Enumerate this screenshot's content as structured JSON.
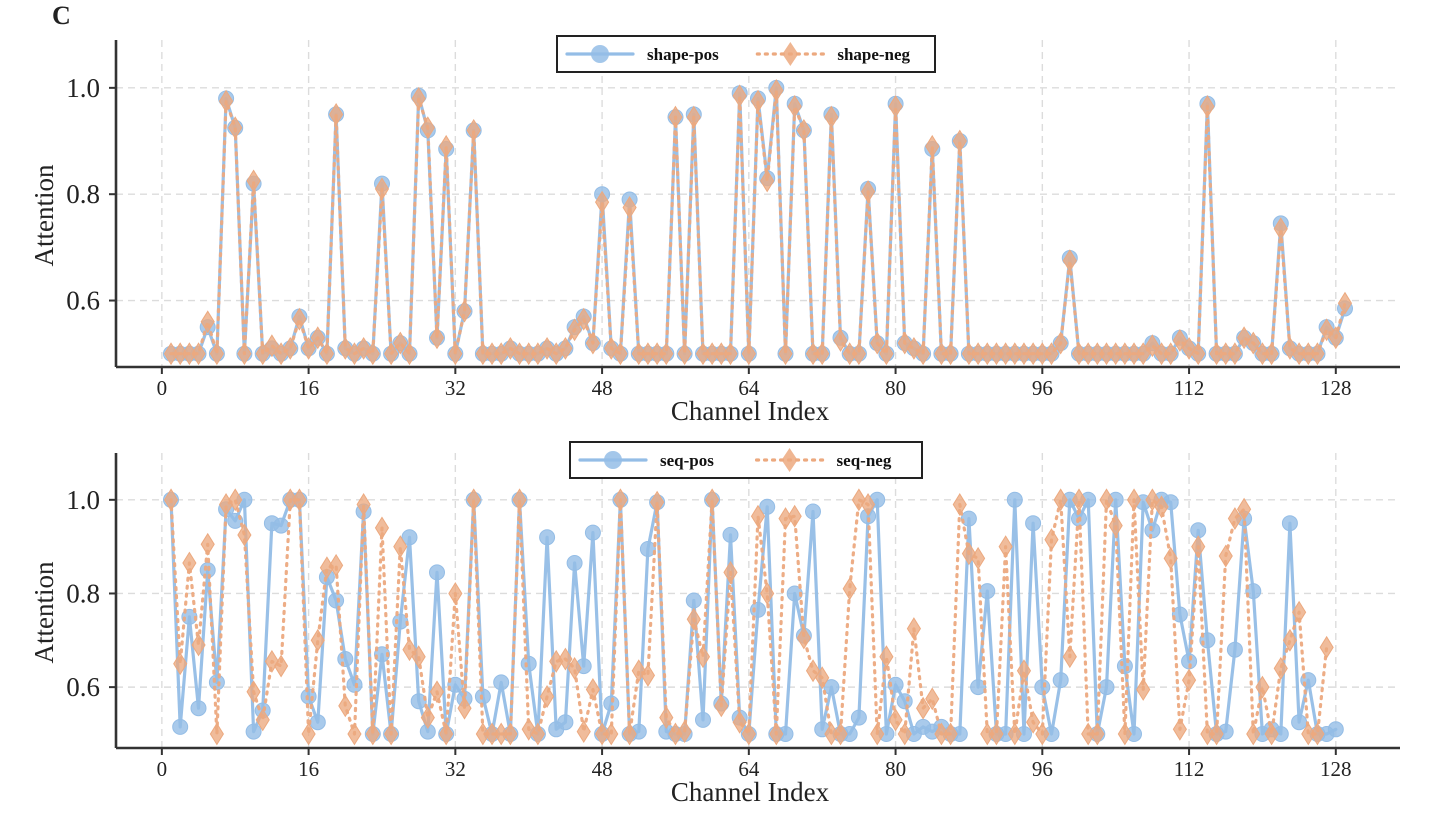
{
  "panel_label": "C",
  "colors": {
    "pos": "#94bde6",
    "neg": "#eca97f",
    "axis": "#333333",
    "grid": "#dcdcdc"
  },
  "chart_data": [
    {
      "type": "line",
      "xlabel": "Channel Index",
      "ylabel": "Attention",
      "xlim": [
        -5,
        135
      ],
      "ylim": [
        0.475,
        1.09
      ],
      "xticks": [
        0,
        16,
        32,
        48,
        64,
        80,
        96,
        112,
        128
      ],
      "yticks": [
        0.6,
        0.8,
        1.0
      ],
      "ytick_labels": [
        "0.6",
        "0.8",
        "1.0"
      ],
      "grid": true,
      "legend_position": "top-center",
      "x_start": 1,
      "series": [
        {
          "name": "shape-pos",
          "marker": "circle",
          "line_style": "solid",
          "values": [
            0.5,
            0.5,
            0.5,
            0.5,
            0.55,
            0.5,
            0.98,
            0.925,
            0.5,
            0.82,
            0.5,
            0.51,
            0.5,
            0.51,
            0.57,
            0.51,
            0.53,
            0.5,
            0.95,
            0.51,
            0.5,
            0.51,
            0.5,
            0.82,
            0.5,
            0.52,
            0.5,
            0.985,
            0.92,
            0.53,
            0.885,
            0.5,
            0.58,
            0.92,
            0.5,
            0.5,
            0.5,
            0.51,
            0.5,
            0.5,
            0.5,
            0.51,
            0.5,
            0.51,
            0.55,
            0.57,
            0.52,
            0.8,
            0.51,
            0.5,
            0.79,
            0.5,
            0.5,
            0.5,
            0.5,
            0.945,
            0.5,
            0.95,
            0.5,
            0.5,
            0.5,
            0.5,
            0.99,
            0.5,
            0.98,
            0.83,
            1.0,
            0.5,
            0.97,
            0.92,
            0.5,
            0.5,
            0.95,
            0.53,
            0.5,
            0.5,
            0.81,
            0.52,
            0.5,
            0.97,
            0.52,
            0.51,
            0.5,
            0.885,
            0.5,
            0.5,
            0.9,
            0.5,
            0.5,
            0.5,
            0.5,
            0.5,
            0.5,
            0.5,
            0.5,
            0.5,
            0.5,
            0.52,
            0.68,
            0.5,
            0.5,
            0.5,
            0.5,
            0.5,
            0.5,
            0.5,
            0.5,
            0.52,
            0.5,
            0.5,
            0.53,
            0.51,
            0.5,
            0.97,
            0.5,
            0.5,
            0.5,
            0.53,
            0.52,
            0.5,
            0.5,
            0.745,
            0.51,
            0.5,
            0.5,
            0.5,
            0.55,
            0.53,
            0.585
          ]
        },
        {
          "name": "shape-neg",
          "marker": "diamond",
          "line_style": "dotted",
          "values": [
            0.5,
            0.5,
            0.5,
            0.5,
            0.56,
            0.5,
            0.975,
            0.925,
            0.5,
            0.825,
            0.5,
            0.515,
            0.5,
            0.51,
            0.565,
            0.51,
            0.53,
            0.5,
            0.95,
            0.51,
            0.5,
            0.51,
            0.5,
            0.81,
            0.5,
            0.52,
            0.5,
            0.98,
            0.925,
            0.53,
            0.89,
            0.5,
            0.58,
            0.92,
            0.5,
            0.5,
            0.5,
            0.51,
            0.5,
            0.5,
            0.5,
            0.51,
            0.5,
            0.51,
            0.545,
            0.565,
            0.52,
            0.785,
            0.51,
            0.5,
            0.775,
            0.5,
            0.5,
            0.5,
            0.5,
            0.945,
            0.5,
            0.945,
            0.5,
            0.5,
            0.5,
            0.5,
            0.985,
            0.5,
            0.975,
            0.825,
            0.995,
            0.5,
            0.965,
            0.92,
            0.5,
            0.5,
            0.945,
            0.525,
            0.5,
            0.5,
            0.805,
            0.52,
            0.5,
            0.965,
            0.52,
            0.51,
            0.5,
            0.89,
            0.5,
            0.5,
            0.9,
            0.5,
            0.5,
            0.5,
            0.5,
            0.5,
            0.5,
            0.5,
            0.5,
            0.5,
            0.5,
            0.52,
            0.675,
            0.5,
            0.5,
            0.5,
            0.5,
            0.5,
            0.5,
            0.5,
            0.5,
            0.515,
            0.5,
            0.5,
            0.525,
            0.51,
            0.5,
            0.965,
            0.5,
            0.5,
            0.5,
            0.53,
            0.52,
            0.5,
            0.5,
            0.735,
            0.51,
            0.5,
            0.5,
            0.5,
            0.545,
            0.53,
            0.595
          ]
        }
      ]
    },
    {
      "type": "line",
      "xlabel": "Channel Index",
      "ylabel": "Attention",
      "xlim": [
        -5,
        135
      ],
      "ylim": [
        0.47,
        1.1
      ],
      "xticks": [
        0,
        16,
        32,
        48,
        64,
        80,
        96,
        112,
        128
      ],
      "yticks": [
        0.6,
        0.8,
        1.0
      ],
      "ytick_labels": [
        "0.6",
        "0.8",
        "1.0"
      ],
      "grid": true,
      "legend_position": "top-center",
      "x_start": 1,
      "series": [
        {
          "name": "seq-pos",
          "marker": "circle",
          "line_style": "solid",
          "values": [
            1.0,
            0.515,
            0.75,
            0.555,
            0.85,
            0.61,
            0.98,
            0.955,
            1.0,
            0.505,
            0.55,
            0.95,
            0.945,
            1.0,
            1.0,
            0.58,
            0.525,
            0.835,
            0.785,
            0.66,
            0.605,
            0.975,
            0.5,
            0.67,
            0.5,
            0.74,
            0.92,
            0.57,
            0.505,
            0.845,
            0.5,
            0.605,
            0.575,
            1.0,
            0.58,
            0.5,
            0.61,
            0.5,
            1.0,
            0.65,
            0.5,
            0.92,
            0.51,
            0.525,
            0.865,
            0.645,
            0.93,
            0.5,
            0.565,
            1.0,
            0.5,
            0.505,
            0.895,
            0.995,
            0.505,
            0.5,
            0.5,
            0.785,
            0.53,
            1.0,
            0.565,
            0.925,
            0.535,
            0.5,
            0.765,
            0.985,
            0.5,
            0.5,
            0.8,
            0.71,
            0.975,
            0.51,
            0.6,
            0.5,
            0.5,
            0.535,
            0.965,
            1.0,
            0.5,
            0.605,
            0.57,
            0.5,
            0.515,
            0.505,
            0.515,
            0.5,
            0.5,
            0.96,
            0.6,
            0.805,
            0.5,
            0.5,
            1.0,
            0.5,
            0.95,
            0.6,
            0.5,
            0.615,
            1.0,
            0.96,
            1.0,
            0.5,
            0.6,
            1.0,
            0.645,
            0.5,
            0.995,
            0.935,
            1.0,
            0.995,
            0.755,
            0.655,
            0.935,
            0.7,
            0.5,
            0.505,
            0.68,
            0.96,
            0.805,
            0.5,
            0.51,
            0.5,
            0.95,
            0.525,
            0.615,
            0.5,
            0.5,
            0.51
          ]
        },
        {
          "name": "seq-neg",
          "marker": "diamond",
          "line_style": "dotted",
          "values": [
            1.0,
            0.65,
            0.865,
            0.69,
            0.905,
            0.5,
            0.99,
            1.0,
            0.925,
            0.59,
            0.53,
            0.655,
            0.645,
            1.0,
            1.0,
            0.5,
            0.7,
            0.855,
            0.86,
            0.56,
            0.5,
            0.99,
            0.5,
            0.94,
            0.5,
            0.9,
            0.68,
            0.665,
            0.535,
            0.59,
            0.5,
            0.8,
            0.555,
            1.0,
            0.5,
            0.5,
            0.5,
            0.5,
            1.0,
            0.51,
            0.5,
            0.58,
            0.655,
            0.66,
            0.64,
            0.505,
            0.595,
            0.5,
            0.5,
            1.0,
            0.5,
            0.635,
            0.625,
            0.995,
            0.535,
            0.5,
            0.505,
            0.745,
            0.665,
            1.0,
            0.56,
            0.845,
            0.525,
            0.5,
            0.965,
            0.8,
            0.5,
            0.96,
            0.965,
            0.705,
            0.635,
            0.62,
            0.5,
            0.5,
            0.81,
            1.0,
            0.99,
            0.5,
            0.665,
            0.53,
            0.5,
            0.725,
            0.555,
            0.575,
            0.5,
            0.5,
            0.99,
            0.885,
            0.875,
            0.5,
            0.5,
            0.9,
            0.5,
            0.635,
            0.525,
            0.5,
            0.915,
            1.0,
            0.665,
            1.0,
            0.5,
            0.5,
            1.0,
            0.945,
            0.5,
            1.0,
            0.595,
            1.0,
            0.985,
            0.875,
            0.51,
            0.615,
            0.9,
            0.5,
            0.5,
            0.88,
            0.96,
            0.98,
            0.5,
            0.6,
            0.5,
            0.64,
            0.7,
            0.76,
            0.5,
            0.5,
            0.685
          ]
        }
      ]
    }
  ]
}
